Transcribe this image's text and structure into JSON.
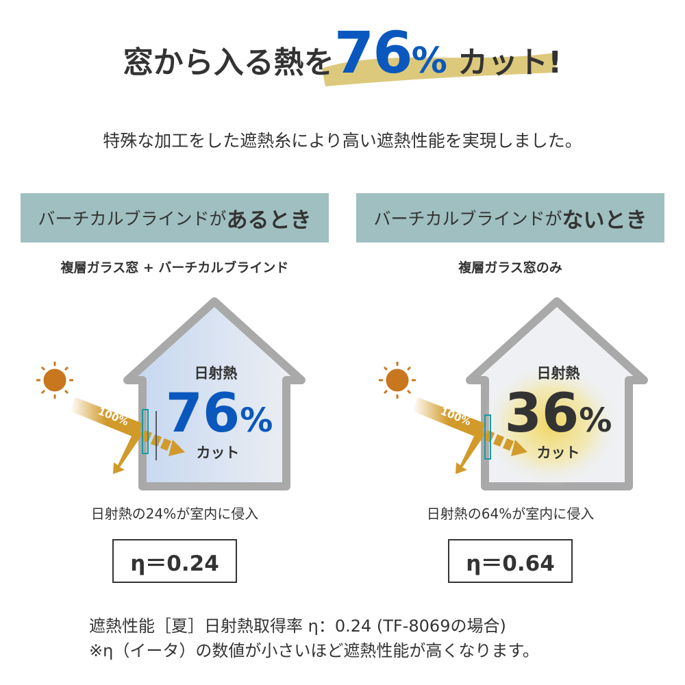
{
  "headline": {
    "prefix": "窓から入る熱を",
    "number": "76",
    "percent": "%",
    "suffix": "カット!"
  },
  "subtitle": "特殊な加工をした遮熱糸により高い遮熱性能を実現しました。",
  "colors": {
    "accent_blue": "#0a58bd",
    "banner": "#9fbfc0",
    "arrow_gold": "#d19a2a",
    "sun": "#c8771e",
    "brush": "#d8c36e"
  },
  "panels": [
    {
      "banner_prefix": "バーチカルブラインドが",
      "banner_emphasis": "あるとき",
      "caption": "複層ガラス窓 + バーチカルブラインド",
      "heat_label": "日射熱",
      "cut_number": "76",
      "cut_percent": "%",
      "cut_label": "カット",
      "arrow_label": "100%",
      "note": "日射熱の24%が室内に侵入",
      "eta": "η＝0.24",
      "number_color": "#0a58bd",
      "has_blind": true
    },
    {
      "banner_prefix": "バーチカルブラインドが",
      "banner_emphasis": "ないとき",
      "caption": "複層ガラス窓のみ",
      "heat_label": "日射熱",
      "cut_number": "36",
      "cut_percent": "%",
      "cut_label": "カット",
      "arrow_label": "100%",
      "note": "日射熱の64%が室内に侵入",
      "eta": "η＝0.64",
      "number_color": "#333333",
      "has_blind": false
    }
  ],
  "footer": {
    "line1": "遮熱性能［夏］日射熱取得率 η：0.24 (TF-8069の場合)",
    "line2": "※η（イータ）の数値が小さいほど遮熱性能が高くなります。"
  }
}
